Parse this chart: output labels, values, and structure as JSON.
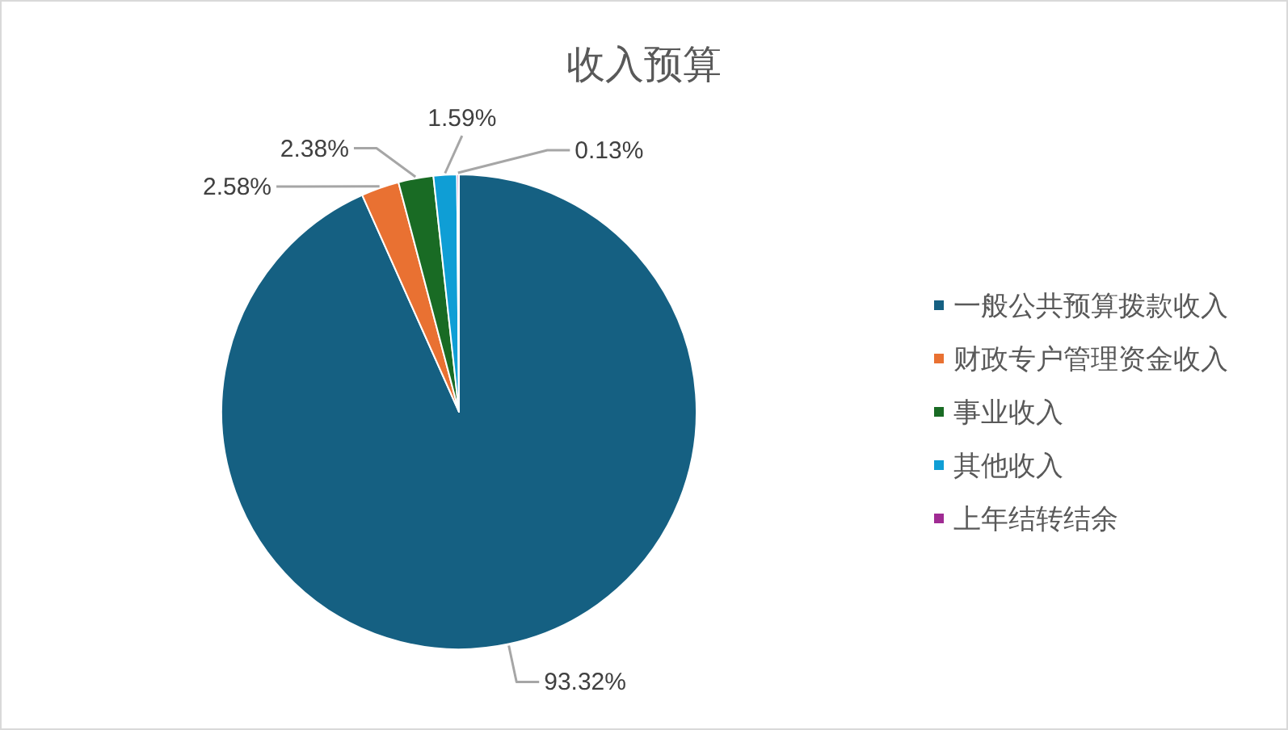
{
  "chart_data": {
    "type": "pie",
    "title": "收入预算",
    "categories": [
      "一般公共预算拨款收入",
      "财政专户管理资金收入",
      "事业收入",
      "其他收入",
      "上年结转结余"
    ],
    "values": [
      93.32,
      2.58,
      2.38,
      1.59,
      0.13
    ],
    "value_labels": [
      "93.32%",
      "2.58%",
      "2.38%",
      "1.59%",
      "0.13%"
    ],
    "colors": [
      "#156082",
      "#e97132",
      "#196b24",
      "#0f9ed5",
      "#a02b93"
    ],
    "legend": "right"
  }
}
